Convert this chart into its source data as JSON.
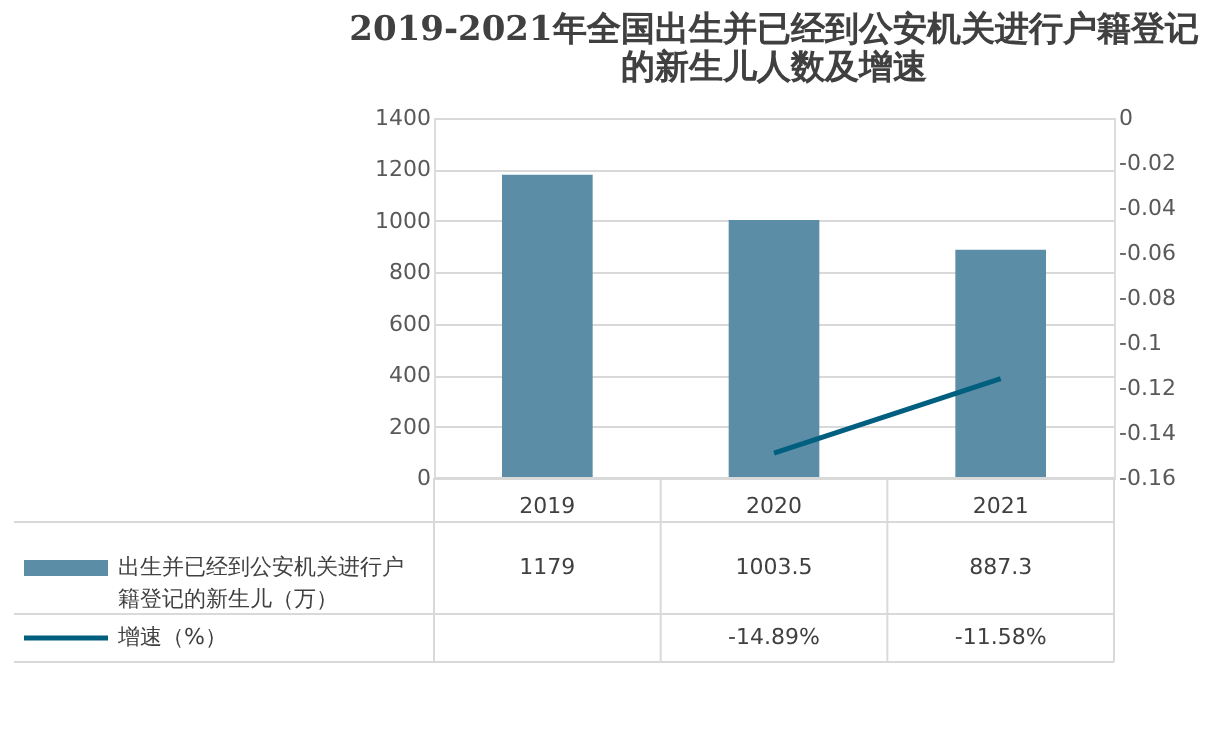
{
  "chart_data": {
    "type": "bar",
    "title": "2019-2021年全国出生并已经到公安机关进行户籍登记的新生儿人数及增速",
    "categories": [
      "2019",
      "2020",
      "2021"
    ],
    "series": [
      {
        "name": "出生并已经到公安机关进行户籍登记的新生儿（万）",
        "color": "#5b8ea6",
        "values": [
          1179,
          1003.5,
          887.3
        ]
      },
      {
        "name": "增速（%）",
        "type": "line",
        "axis": "y2",
        "color": "#005f7f",
        "values": [
          null,
          -0.1489,
          -0.1158
        ],
        "value_labels": [
          null,
          "-14.89%",
          "-11.58%"
        ]
      }
    ],
    "ylim": [
      0,
      1400
    ],
    "yticks": [
      0,
      200,
      400,
      600,
      800,
      1000,
      1200,
      1400
    ],
    "y2lim": [
      -0.16,
      0
    ],
    "y2ticks": [
      -0.16,
      -0.14,
      -0.12,
      -0.1,
      -0.08,
      -0.06,
      -0.04,
      -0.02,
      0
    ],
    "grid": "y",
    "legend": "bottom",
    "data_labels": true
  }
}
